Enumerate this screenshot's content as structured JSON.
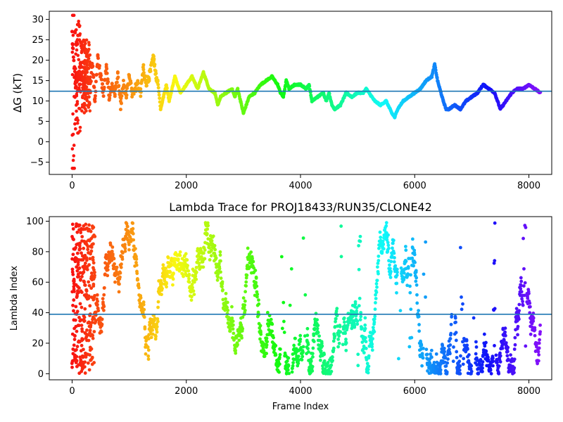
{
  "chart_data": [
    {
      "type": "scatter",
      "title": "",
      "xlabel": "",
      "ylabel": "ΔG (kT)",
      "xlim": [
        -400,
        8400
      ],
      "ylim": [
        -8,
        32
      ],
      "xticks": [
        0,
        2000,
        4000,
        6000,
        8000
      ],
      "yticks": [
        -5,
        0,
        5,
        10,
        15,
        20,
        25,
        30
      ],
      "xtick_labels": [
        "0",
        "2000",
        "4000",
        "6000",
        "8000"
      ],
      "ytick_labels": [
        "−5",
        "0",
        "5",
        "10",
        "15",
        "20",
        "25",
        "30"
      ],
      "color_map": "rainbow (frame index high → violet, low → red)",
      "hline": 12.4,
      "hline_color": "#1f77b4",
      "grid": false,
      "trace_points": [
        [
          0,
          26
        ],
        [
          60,
          14
        ],
        [
          100,
          16
        ],
        [
          150,
          19
        ],
        [
          200,
          14
        ],
        [
          260,
          22
        ],
        [
          300,
          9
        ],
        [
          350,
          20
        ],
        [
          400,
          10
        ],
        [
          450,
          21
        ],
        [
          500,
          16
        ],
        [
          550,
          12
        ],
        [
          600,
          18
        ],
        [
          650,
          11
        ],
        [
          700,
          14
        ],
        [
          750,
          12
        ],
        [
          800,
          16
        ],
        [
          850,
          9
        ],
        [
          900,
          14
        ],
        [
          950,
          11
        ],
        [
          1000,
          16
        ],
        [
          1050,
          12
        ],
        [
          1100,
          13
        ],
        [
          1150,
          14
        ],
        [
          1200,
          12
        ],
        [
          1250,
          18
        ],
        [
          1300,
          14
        ],
        [
          1350,
          16
        ],
        [
          1400,
          19
        ],
        [
          1430,
          21
        ],
        [
          1470,
          16
        ],
        [
          1500,
          15
        ],
        [
          1550,
          8
        ],
        [
          1600,
          11
        ],
        [
          1650,
          14
        ],
        [
          1700,
          10
        ],
        [
          1800,
          16
        ],
        [
          1900,
          12
        ],
        [
          2000,
          14
        ],
        [
          2100,
          16
        ],
        [
          2200,
          13
        ],
        [
          2300,
          17
        ],
        [
          2400,
          13
        ],
        [
          2500,
          12
        ],
        [
          2550,
          9
        ],
        [
          2600,
          11
        ],
        [
          2700,
          12
        ],
        [
          2800,
          13
        ],
        [
          2850,
          11
        ],
        [
          2900,
          13
        ],
        [
          2950,
          10
        ],
        [
          3000,
          7
        ],
        [
          3100,
          11
        ],
        [
          3200,
          12
        ],
        [
          3300,
          14
        ],
        [
          3400,
          15
        ],
        [
          3500,
          16
        ],
        [
          3550,
          15
        ],
        [
          3600,
          14
        ],
        [
          3650,
          12
        ],
        [
          3700,
          11
        ],
        [
          3750,
          15
        ],
        [
          3800,
          13
        ],
        [
          3900,
          14
        ],
        [
          4000,
          14
        ],
        [
          4100,
          13
        ],
        [
          4150,
          14
        ],
        [
          4200,
          10
        ],
        [
          4300,
          11
        ],
        [
          4400,
          12
        ],
        [
          4450,
          10
        ],
        [
          4500,
          12
        ],
        [
          4550,
          9
        ],
        [
          4600,
          8
        ],
        [
          4700,
          9
        ],
        [
          4800,
          12
        ],
        [
          4900,
          11
        ],
        [
          5000,
          12
        ],
        [
          5100,
          12
        ],
        [
          5150,
          13
        ],
        [
          5200,
          12
        ],
        [
          5300,
          10
        ],
        [
          5400,
          9
        ],
        [
          5500,
          10
        ],
        [
          5600,
          7
        ],
        [
          5650,
          6
        ],
        [
          5700,
          8
        ],
        [
          5800,
          10
        ],
        [
          5900,
          11
        ],
        [
          6000,
          12
        ],
        [
          6100,
          13
        ],
        [
          6200,
          15
        ],
        [
          6300,
          16
        ],
        [
          6350,
          19
        ],
        [
          6400,
          15
        ],
        [
          6500,
          10
        ],
        [
          6550,
          8
        ],
        [
          6600,
          8
        ],
        [
          6700,
          9
        ],
        [
          6800,
          8
        ],
        [
          6900,
          10
        ],
        [
          7000,
          11
        ],
        [
          7100,
          12
        ],
        [
          7200,
          14
        ],
        [
          7300,
          13
        ],
        [
          7400,
          12
        ],
        [
          7500,
          8
        ],
        [
          7600,
          10
        ],
        [
          7700,
          12
        ],
        [
          7800,
          13
        ],
        [
          7900,
          13
        ],
        [
          8000,
          14
        ],
        [
          8100,
          13
        ],
        [
          8200,
          12
        ]
      ]
    },
    {
      "type": "scatter",
      "title": "Lambda Trace for PROJ18433/RUN35/CLONE42",
      "xlabel": "Frame Index",
      "ylabel": "Lambda Index",
      "xlim": [
        -400,
        8400
      ],
      "ylim": [
        -4,
        103
      ],
      "xticks": [
        0,
        2000,
        4000,
        6000,
        8000
      ],
      "yticks": [
        0,
        20,
        40,
        60,
        80,
        100
      ],
      "xtick_labels": [
        "0",
        "2000",
        "4000",
        "6000",
        "8000"
      ],
      "ytick_labels": [
        "0",
        "20",
        "40",
        "60",
        "80",
        "100"
      ],
      "color_map": "rainbow (frame index high → violet, low → red)",
      "hline": 39,
      "hline_color": "#1f77b4",
      "grid": false,
      "gap_bands": [
        [
          3650,
          3720
        ],
        [
          3800,
          3850
        ],
        [
          4050,
          4100
        ],
        [
          4700,
          4740
        ],
        [
          5000,
          5050
        ],
        [
          5700,
          5760
        ],
        [
          5900,
          5950
        ],
        [
          6150,
          6200
        ],
        [
          6650,
          6710
        ],
        [
          6800,
          6850
        ],
        [
          7000,
          7060
        ],
        [
          7380,
          7420
        ],
        [
          7900,
          7960
        ]
      ]
    }
  ]
}
